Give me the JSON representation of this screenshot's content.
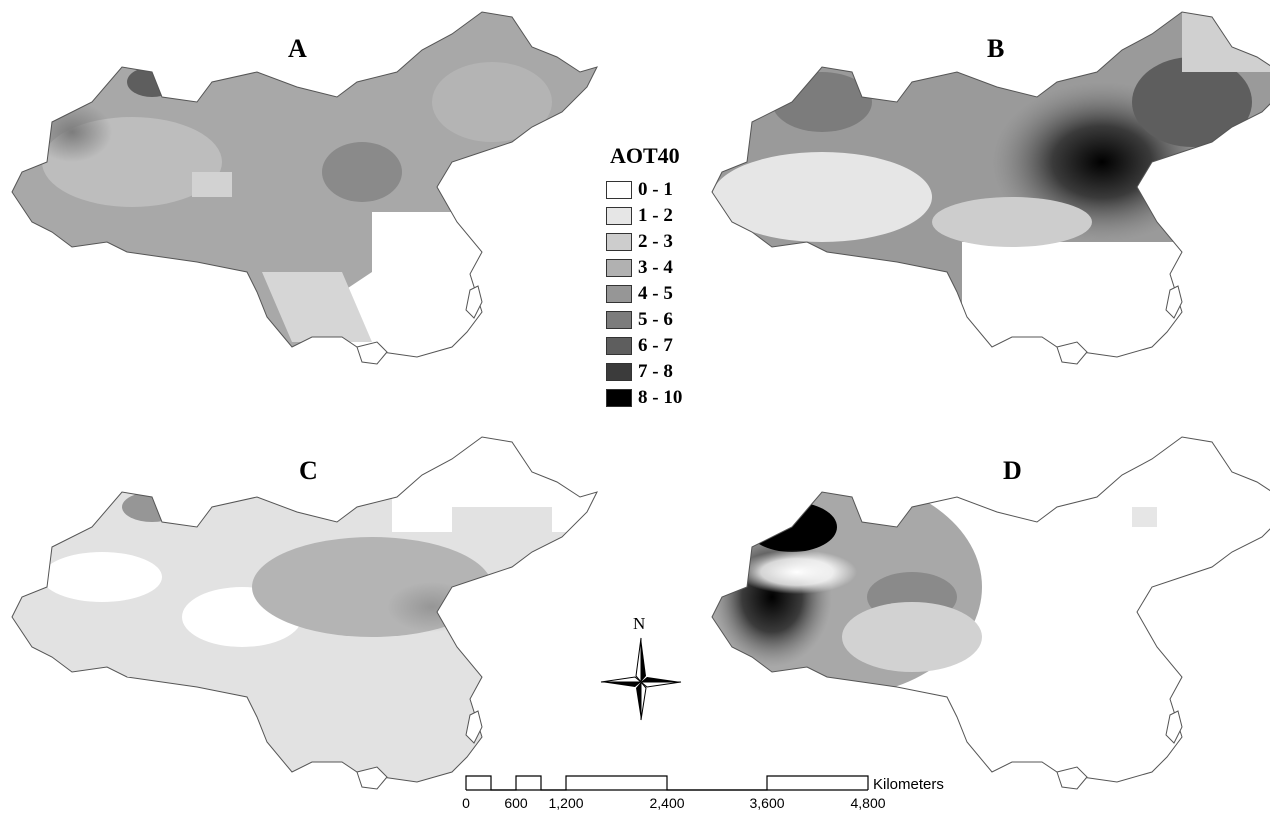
{
  "panels": [
    {
      "label": "A"
    },
    {
      "label": "B"
    },
    {
      "label": "C"
    },
    {
      "label": "D"
    }
  ],
  "legend": {
    "title": "AOT40",
    "classes": [
      {
        "label": "0 - 1",
        "color": "#ffffff"
      },
      {
        "label": "1 - 2",
        "color": "#e6e6e6"
      },
      {
        "label": "2 - 3",
        "color": "#cdcdcd"
      },
      {
        "label": "3 - 4",
        "color": "#b1b1b1"
      },
      {
        "label": "4 - 5",
        "color": "#969696"
      },
      {
        "label": "5 - 6",
        "color": "#7c7c7c"
      },
      {
        "label": "6 - 7",
        "color": "#5e5e5e"
      },
      {
        "label": "7 - 8",
        "color": "#3b3b3b"
      },
      {
        "label": "8 - 10",
        "color": "#000000"
      }
    ]
  },
  "north_arrow": {
    "label": "N"
  },
  "scale_bar": {
    "unit": "Kilometers",
    "ticks": [
      "0",
      "600",
      "1,200",
      "2,400",
      "3,600",
      "4,800"
    ]
  }
}
